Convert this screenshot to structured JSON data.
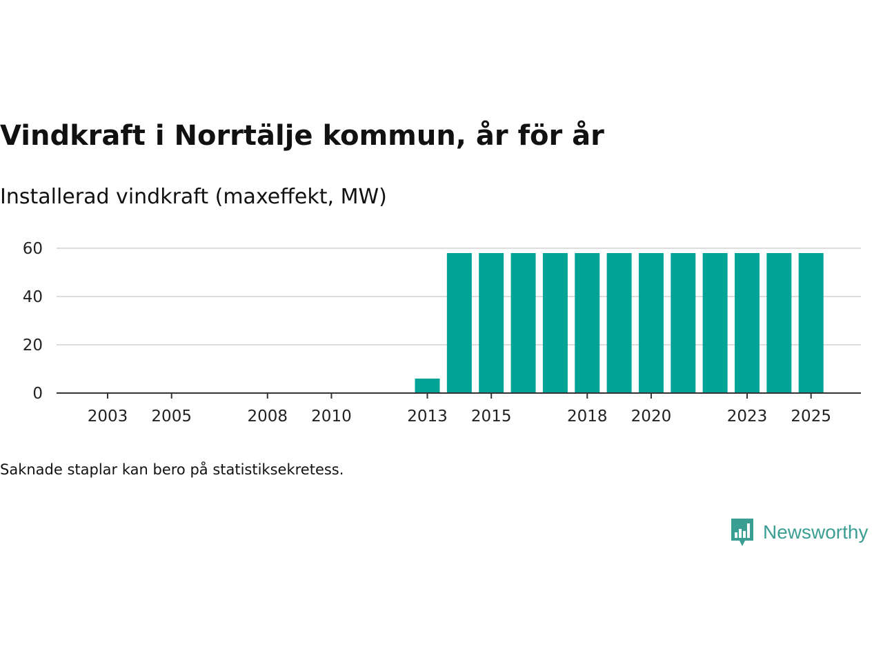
{
  "header": {
    "title": "Vindkraft i Norrtälje kommun, år för år",
    "subtitle": "Installerad vindkraft (maxeffekt, MW)"
  },
  "footer": {
    "note": "Saknade staplar kan bero på statistiksekretess.",
    "brand_name": "Newsworthy"
  },
  "colors": {
    "bar": "#00a497",
    "grid": "#dddddd",
    "axis": "#333333",
    "brand": "#3a9e92"
  },
  "chart_data": {
    "type": "bar",
    "title": "Vindkraft i Norrtälje kommun, år för år",
    "ylabel": "Installerad vindkraft (maxeffekt, MW)",
    "xlabel": "",
    "categories": [
      "2003",
      "2004",
      "2005",
      "2006",
      "2007",
      "2008",
      "2009",
      "2010",
      "2011",
      "2012",
      "2013",
      "2014",
      "2015",
      "2016",
      "2017",
      "2018",
      "2019",
      "2020",
      "2021",
      "2022",
      "2023",
      "2024",
      "2025"
    ],
    "values": [
      0,
      0,
      0,
      0,
      0,
      0,
      0,
      0,
      0,
      0,
      6,
      58,
      58,
      58,
      58,
      58,
      58,
      58,
      58,
      58,
      58,
      58,
      58
    ],
    "x_tick_labels": [
      "2003",
      "2005",
      "2008",
      "2010",
      "2013",
      "2015",
      "2018",
      "2020",
      "2023",
      "2025"
    ],
    "yticks": [
      0,
      20,
      40,
      60
    ],
    "ylim": [
      0,
      60
    ],
    "grid": true
  }
}
